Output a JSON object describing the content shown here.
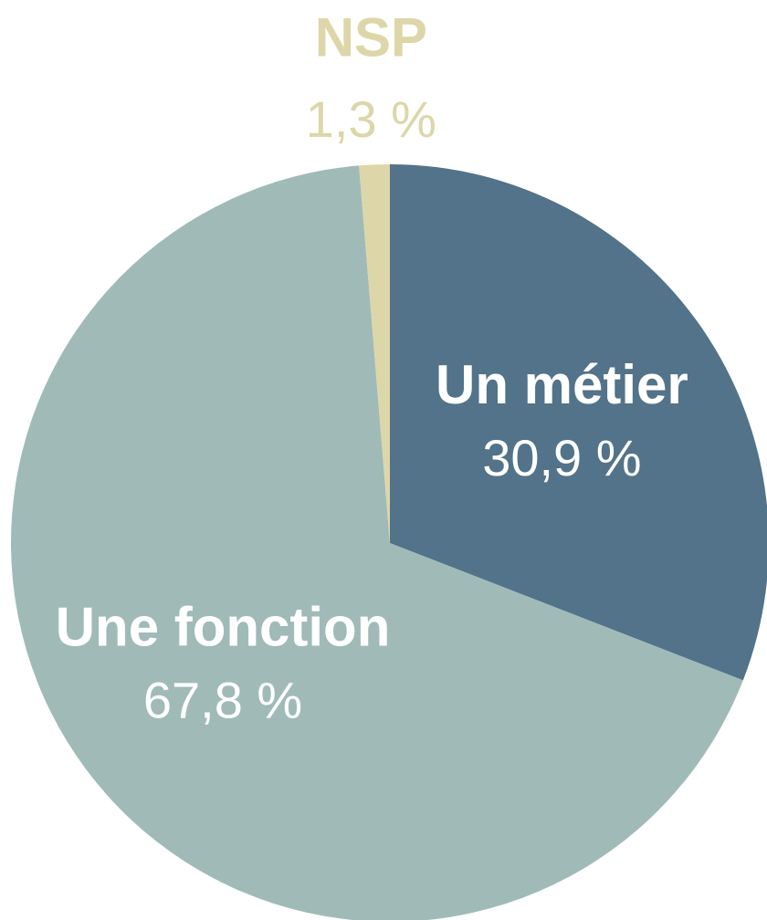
{
  "chart_data": {
    "type": "pie",
    "categories": [
      "Un métier",
      "Une fonction",
      "NSP"
    ],
    "values": [
      30.9,
      67.8,
      1.3
    ],
    "value_labels": [
      "30,9 %",
      "67,8 %",
      "1,3 %"
    ],
    "colors": [
      "#527389",
      "#a0bbb7",
      "#ddd6a8"
    ]
  }
}
